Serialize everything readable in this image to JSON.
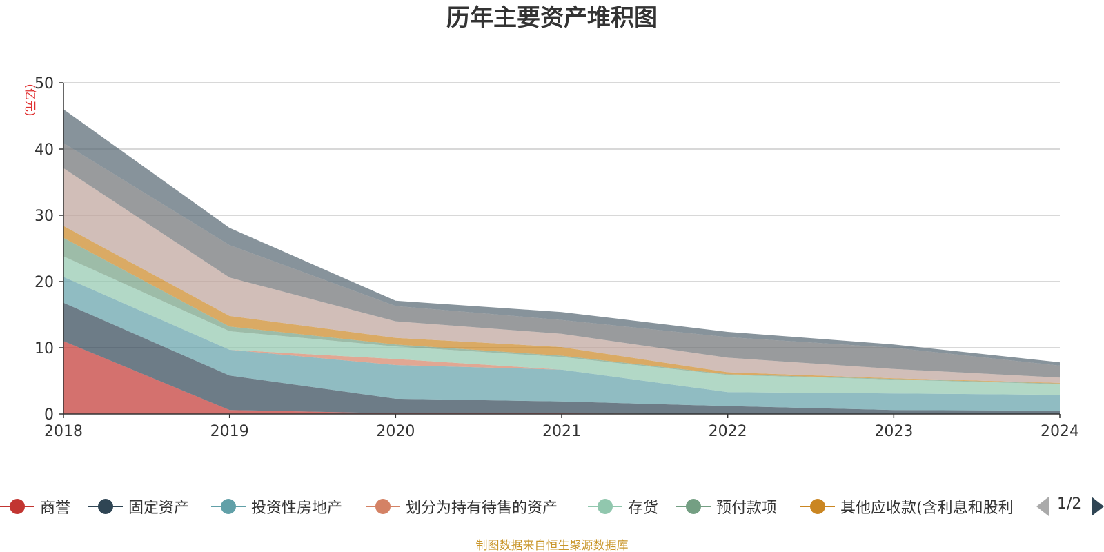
{
  "chart_data": {
    "type": "area",
    "stacked": true,
    "title": "历年主要资产堆积图",
    "unit_label": "(亿元)",
    "x": [
      "2018",
      "2019",
      "2020",
      "2021",
      "2022",
      "2023",
      "2024"
    ],
    "ylim": [
      0,
      50
    ],
    "yticks": [
      0,
      10,
      20,
      30,
      40,
      50
    ],
    "grid": true,
    "legend_position": "bottom",
    "series": [
      {
        "name": "商誉",
        "color": "#c23531",
        "values": [
          11.0,
          0.6,
          0.1,
          0.1,
          0.0,
          0.0,
          0.0
        ]
      },
      {
        "name": "固定资产",
        "color": "#2f4554",
        "values": [
          5.8,
          5.2,
          2.2,
          1.8,
          1.2,
          0.6,
          0.5
        ]
      },
      {
        "name": "投资性房地产",
        "color": "#61a0a8",
        "values": [
          3.9,
          3.9,
          5.1,
          4.8,
          2.1,
          2.5,
          2.4
        ]
      },
      {
        "name": "划分为持有待售的资产",
        "color": "#d48265",
        "values": [
          0.0,
          0.0,
          0.9,
          0.0,
          0.0,
          0.0,
          0.0
        ]
      },
      {
        "name": "存货",
        "color": "#91c7ae",
        "values": [
          3.1,
          2.8,
          1.9,
          1.9,
          2.6,
          2.1,
          1.6
        ]
      },
      {
        "name": "预付款项",
        "color": "#749f83",
        "values": [
          2.8,
          0.7,
          0.3,
          0.2,
          0.1,
          0.1,
          0.1
        ]
      },
      {
        "name": "其他应收款(含利息和股利)",
        "color": "#ca8622",
        "values": [
          1.8,
          1.6,
          1.0,
          1.3,
          0.3,
          0.1,
          0.1
        ]
      },
      {
        "name": "",
        "color": "#bda29a",
        "values": [
          8.7,
          5.8,
          2.5,
          2.0,
          2.2,
          1.4,
          0.8
        ]
      },
      {
        "name": "",
        "color": "#6e7074",
        "values": [
          3.8,
          4.9,
          2.3,
          2.1,
          3.1,
          3.2,
          1.8
        ]
      },
      {
        "name": "",
        "color": "#546570",
        "values": [
          5.1,
          2.6,
          0.8,
          1.2,
          0.8,
          0.5,
          0.5
        ]
      }
    ]
  },
  "legend_items": [
    {
      "label": "商誉",
      "color": "#c23531"
    },
    {
      "label": "固定资产",
      "color": "#2f4554"
    },
    {
      "label": "投资性房地产",
      "color": "#61a0a8"
    },
    {
      "label": "划分为持有待售的资产",
      "color": "#d48265"
    },
    {
      "label": "存货",
      "color": "#91c7ae"
    },
    {
      "label": "预付款项",
      "color": "#749f83"
    },
    {
      "label": "其他应收款(含利息和股利",
      "color": "#ca8622"
    }
  ],
  "legend_pager": {
    "text": "1/2"
  },
  "source_note": "制图数据来自恒生聚源数据库"
}
